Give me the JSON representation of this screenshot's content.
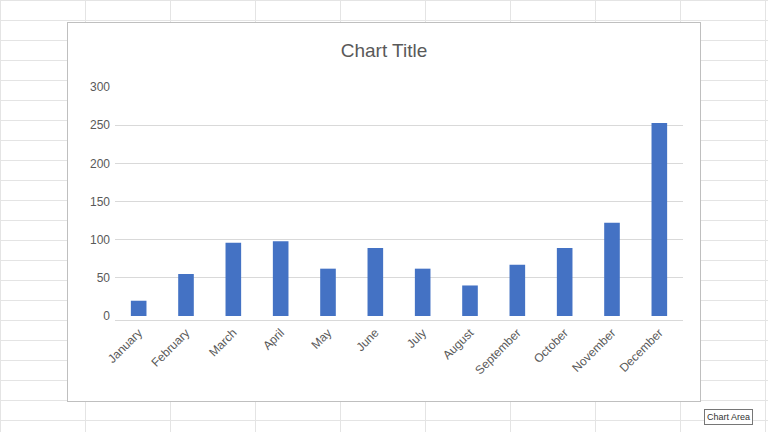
{
  "chart_data": {
    "type": "bar",
    "title": "Chart Title",
    "categories": [
      "January",
      "February",
      "March",
      "April",
      "May",
      "June",
      "July",
      "August",
      "September",
      "October",
      "November",
      "December"
    ],
    "values": [
      20,
      55,
      96,
      98,
      62,
      89,
      62,
      40,
      67,
      89,
      122,
      253
    ],
    "color": "#4472c4",
    "ylim": [
      0,
      300
    ],
    "yticks": [
      0,
      50,
      100,
      150,
      200,
      250,
      300
    ],
    "grid": true,
    "annotations": [
      "Chart Area"
    ]
  }
}
